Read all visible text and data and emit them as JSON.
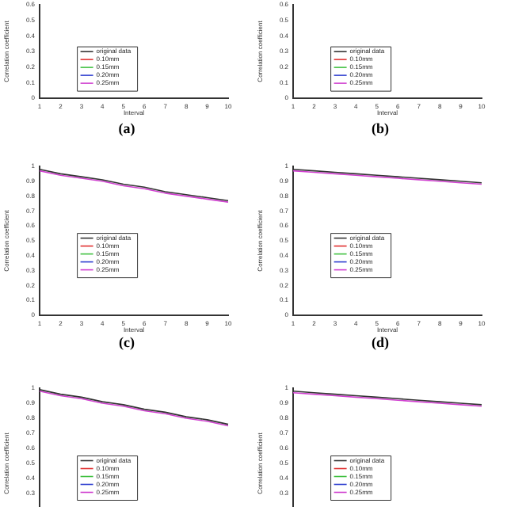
{
  "chart_data": [
    {
      "type": "line",
      "xlabel": "Interval",
      "ylabel": "Correlation coefficient",
      "categories": [
        "1",
        "2",
        "3",
        "4",
        "5",
        "6",
        "7",
        "8",
        "9",
        "10"
      ],
      "ylim": [
        0,
        0.6
      ],
      "yticks": [
        0,
        0.1,
        0.2,
        0.3,
        0.4,
        0.5,
        0.6
      ],
      "legend": "center left",
      "annotations": [
        "(a)"
      ],
      "series": [
        {
          "name": "original data",
          "color": "#333333",
          "values": [
            null,
            null,
            null,
            null,
            null,
            null,
            null,
            null,
            null,
            null
          ]
        },
        {
          "name": "0.10mm",
          "color": "#e03030",
          "values": [
            null,
            null,
            null,
            null,
            null,
            null,
            null,
            null,
            null,
            null
          ]
        },
        {
          "name": "0.15mm",
          "color": "#40c040",
          "values": [
            null,
            null,
            null,
            null,
            null,
            null,
            null,
            null,
            null,
            null
          ]
        },
        {
          "name": "0.20mm",
          "color": "#3040d0",
          "values": [
            null,
            null,
            null,
            null,
            null,
            null,
            null,
            null,
            null,
            null
          ]
        },
        {
          "name": "0.25mm",
          "color": "#d040d0",
          "values": [
            null,
            null,
            null,
            null,
            null,
            null,
            null,
            null,
            null,
            null
          ]
        }
      ]
    },
    {
      "type": "line",
      "xlabel": "Interval",
      "ylabel": "Correlation coefficient",
      "categories": [
        "1",
        "2",
        "3",
        "4",
        "5",
        "6",
        "7",
        "8",
        "9",
        "10"
      ],
      "ylim": [
        0,
        0.6
      ],
      "yticks": [
        0,
        0.1,
        0.2,
        0.3,
        0.4,
        0.5,
        0.6
      ],
      "legend": "center left",
      "annotations": [
        "(b)"
      ],
      "series": [
        {
          "name": "original data",
          "color": "#333333",
          "values": [
            null,
            null,
            null,
            null,
            null,
            null,
            null,
            null,
            null,
            null
          ]
        },
        {
          "name": "0.10mm",
          "color": "#e03030",
          "values": [
            null,
            null,
            null,
            null,
            null,
            null,
            null,
            null,
            null,
            null
          ]
        },
        {
          "name": "0.15mm",
          "color": "#40c040",
          "values": [
            null,
            null,
            null,
            null,
            null,
            null,
            null,
            null,
            null,
            null
          ]
        },
        {
          "name": "0.20mm",
          "color": "#3040d0",
          "values": [
            null,
            null,
            null,
            null,
            null,
            null,
            null,
            null,
            null,
            null
          ]
        },
        {
          "name": "0.25mm",
          "color": "#d040d0",
          "values": [
            null,
            null,
            null,
            null,
            null,
            null,
            null,
            null,
            null,
            null
          ]
        }
      ]
    },
    {
      "type": "line",
      "xlabel": "Interval",
      "ylabel": "Correlation coefficient",
      "x": [
        1,
        2,
        3,
        4,
        5,
        6,
        7,
        8,
        9,
        10
      ],
      "xlim": [
        1,
        10
      ],
      "xticks": [
        1,
        2,
        3,
        4,
        5,
        6,
        7,
        8,
        9,
        10
      ],
      "ylim": [
        0,
        1
      ],
      "yticks": [
        0,
        0.1,
        0.2,
        0.3,
        0.4,
        0.5,
        0.6,
        0.7,
        0.8,
        0.9,
        1
      ],
      "legend": "center left",
      "annotations": [
        "(c)"
      ],
      "series": [
        {
          "name": "original data",
          "color": "#333333",
          "values": [
            0.98,
            0.95,
            0.93,
            0.91,
            0.88,
            0.86,
            0.83,
            0.81,
            0.79,
            0.77
          ]
        },
        {
          "name": "0.10mm",
          "color": "#e03030",
          "values": [
            null,
            null,
            null,
            null,
            null,
            null,
            null,
            null,
            null,
            null
          ]
        },
        {
          "name": "0.15mm",
          "color": "#40c040",
          "values": [
            null,
            null,
            null,
            null,
            null,
            null,
            null,
            null,
            null,
            null
          ]
        },
        {
          "name": "0.20mm",
          "color": "#3040d0",
          "values": [
            null,
            null,
            null,
            null,
            null,
            null,
            null,
            null,
            null,
            null
          ]
        },
        {
          "name": "0.25mm",
          "color": "#d040d0",
          "values": [
            0.97,
            0.94,
            0.92,
            0.9,
            0.87,
            0.85,
            0.82,
            0.8,
            0.78,
            0.76
          ]
        }
      ]
    },
    {
      "type": "line",
      "xlabel": "Interval",
      "ylabel": "Correlation coefficient",
      "x": [
        1,
        2,
        3,
        4,
        5,
        6,
        7,
        8,
        9,
        10
      ],
      "xlim": [
        1,
        10
      ],
      "xticks": [
        1,
        2,
        3,
        4,
        5,
        6,
        7,
        8,
        9,
        10
      ],
      "ylim": [
        0,
        1
      ],
      "yticks": [
        0,
        0.1,
        0.2,
        0.3,
        0.4,
        0.5,
        0.6,
        0.7,
        0.8,
        0.9,
        1
      ],
      "legend": "center left",
      "annotations": [
        "(d)"
      ],
      "series": [
        {
          "name": "original data",
          "color": "#333333",
          "values": [
            0.98,
            0.97,
            0.96,
            0.95,
            0.94,
            0.93,
            0.92,
            0.91,
            0.9,
            0.89
          ]
        },
        {
          "name": "0.10mm",
          "color": "#e03030",
          "values": [
            null,
            null,
            null,
            null,
            null,
            null,
            null,
            null,
            null,
            null
          ]
        },
        {
          "name": "0.15mm",
          "color": "#40c040",
          "values": [
            null,
            null,
            null,
            null,
            null,
            null,
            null,
            null,
            null,
            null
          ]
        },
        {
          "name": "0.20mm",
          "color": "#3040d0",
          "values": [
            null,
            null,
            null,
            null,
            null,
            null,
            null,
            null,
            null,
            null
          ]
        },
        {
          "name": "0.25mm",
          "color": "#d040d0",
          "values": [
            0.97,
            0.96,
            0.95,
            0.94,
            0.93,
            0.92,
            0.91,
            0.9,
            0.89,
            0.88
          ]
        }
      ]
    },
    {
      "type": "line",
      "ylabel": "Correlation coefficient",
      "categories": [
        null,
        null,
        null,
        null,
        null,
        null,
        null,
        null,
        null,
        null
      ],
      "tick_labels": "y",
      "ylim": [
        0,
        1
      ],
      "yticks": [
        0.3,
        0.4,
        0.5,
        0.6,
        0.7,
        0.8,
        0.9,
        1
      ],
      "legend": "center left",
      "series": [
        {
          "name": "original data",
          "color": "#333333",
          "values": [
            0.99,
            0.96,
            0.94,
            0.91,
            0.89,
            0.86,
            0.84,
            0.81,
            0.79,
            0.76
          ]
        },
        {
          "name": "0.10mm",
          "color": "#e03030",
          "values": [
            null,
            null,
            null,
            null,
            null,
            null,
            null,
            null,
            null,
            null
          ]
        },
        {
          "name": "0.15mm",
          "color": "#40c040",
          "values": [
            null,
            null,
            null,
            null,
            null,
            null,
            null,
            null,
            null,
            null
          ]
        },
        {
          "name": "0.20mm",
          "color": "#3040d0",
          "values": [
            null,
            null,
            null,
            null,
            null,
            null,
            null,
            null,
            null,
            null
          ]
        },
        {
          "name": "0.25mm",
          "color": "#d040d0",
          "values": [
            0.98,
            0.95,
            0.93,
            0.9,
            0.88,
            0.85,
            0.83,
            0.8,
            0.78,
            0.75
          ]
        }
      ]
    },
    {
      "type": "line",
      "ylabel": "Correlation coefficient",
      "categories": [
        null,
        null,
        null,
        null,
        null,
        null,
        null,
        null,
        null,
        null
      ],
      "tick_labels": "y",
      "ylim": [
        0,
        1
      ],
      "yticks": [
        0.3,
        0.4,
        0.5,
        0.6,
        0.7,
        0.8,
        0.9,
        1
      ],
      "legend": "center left",
      "series": [
        {
          "name": "original data",
          "color": "#333333",
          "values": [
            0.98,
            0.97,
            0.96,
            0.95,
            0.94,
            0.93,
            0.92,
            0.91,
            0.9,
            0.89
          ]
        },
        {
          "name": "0.10mm",
          "color": "#e03030",
          "values": [
            null,
            null,
            null,
            null,
            null,
            null,
            null,
            null,
            null,
            null
          ]
        },
        {
          "name": "0.15mm",
          "color": "#40c040",
          "values": [
            null,
            null,
            null,
            null,
            null,
            null,
            null,
            null,
            null,
            null
          ]
        },
        {
          "name": "0.20mm",
          "color": "#3040d0",
          "values": [
            null,
            null,
            null,
            null,
            null,
            null,
            null,
            null,
            null,
            null
          ]
        },
        {
          "name": "0.25mm",
          "color": "#d040d0",
          "values": [
            0.97,
            0.96,
            0.95,
            0.94,
            0.93,
            0.92,
            0.91,
            0.9,
            0.89,
            0.88
          ]
        }
      ]
    }
  ]
}
